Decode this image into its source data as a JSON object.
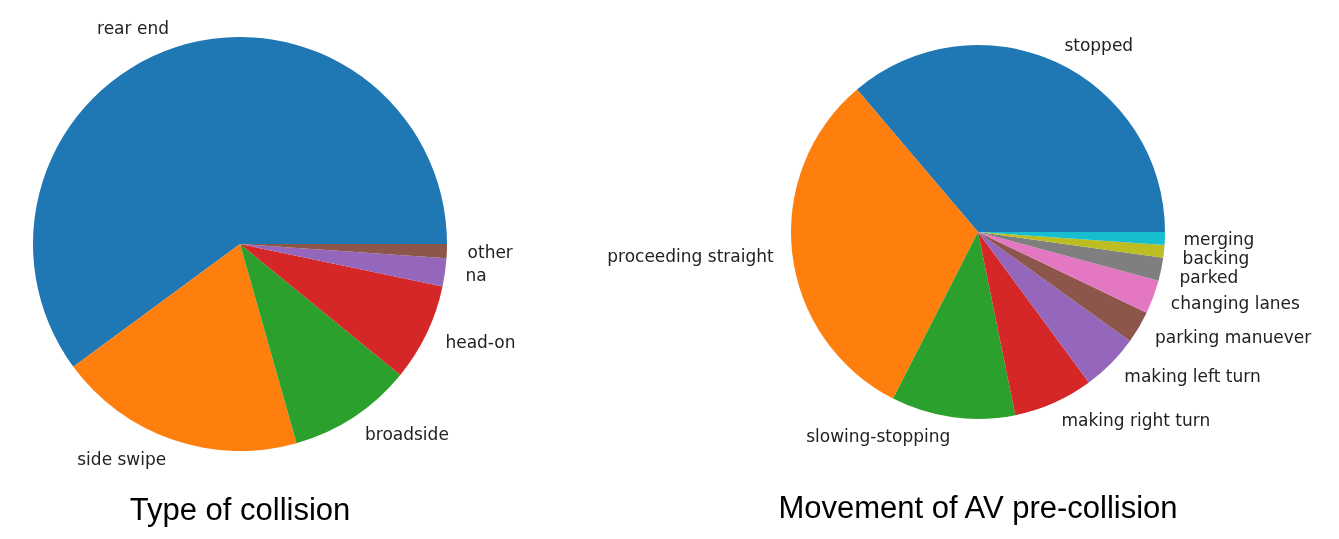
{
  "chart_data": [
    {
      "type": "pie",
      "title": "Type of collision",
      "categories": [
        "rear end",
        "side swipe",
        "broadside",
        "head-on",
        "na",
        "other"
      ],
      "values": [
        60.1,
        19.3,
        9.7,
        7.6,
        2.2,
        1.1
      ],
      "colors": [
        "#1f77b4",
        "#ff7f0e",
        "#2ca02c",
        "#d62728",
        "#9467bd",
        "#8c564b"
      ]
    },
    {
      "type": "pie",
      "title": "Movement of AV pre-collision",
      "categories": [
        "stopped",
        "proceeding straight",
        "slowing-stopping",
        "making right turn",
        "making left turn",
        "parking manuever",
        "changing lanes",
        "parked",
        "backing",
        "merging"
      ],
      "values": [
        36.2,
        31.3,
        10.7,
        6.9,
        5.0,
        2.8,
        2.9,
        2.0,
        1.1,
        1.1
      ],
      "colors": [
        "#1f77b4",
        "#ff7f0e",
        "#2ca02c",
        "#d62728",
        "#9467bd",
        "#8c564b",
        "#e377c2",
        "#7f7f7f",
        "#bcbd22",
        "#17becf"
      ]
    }
  ]
}
